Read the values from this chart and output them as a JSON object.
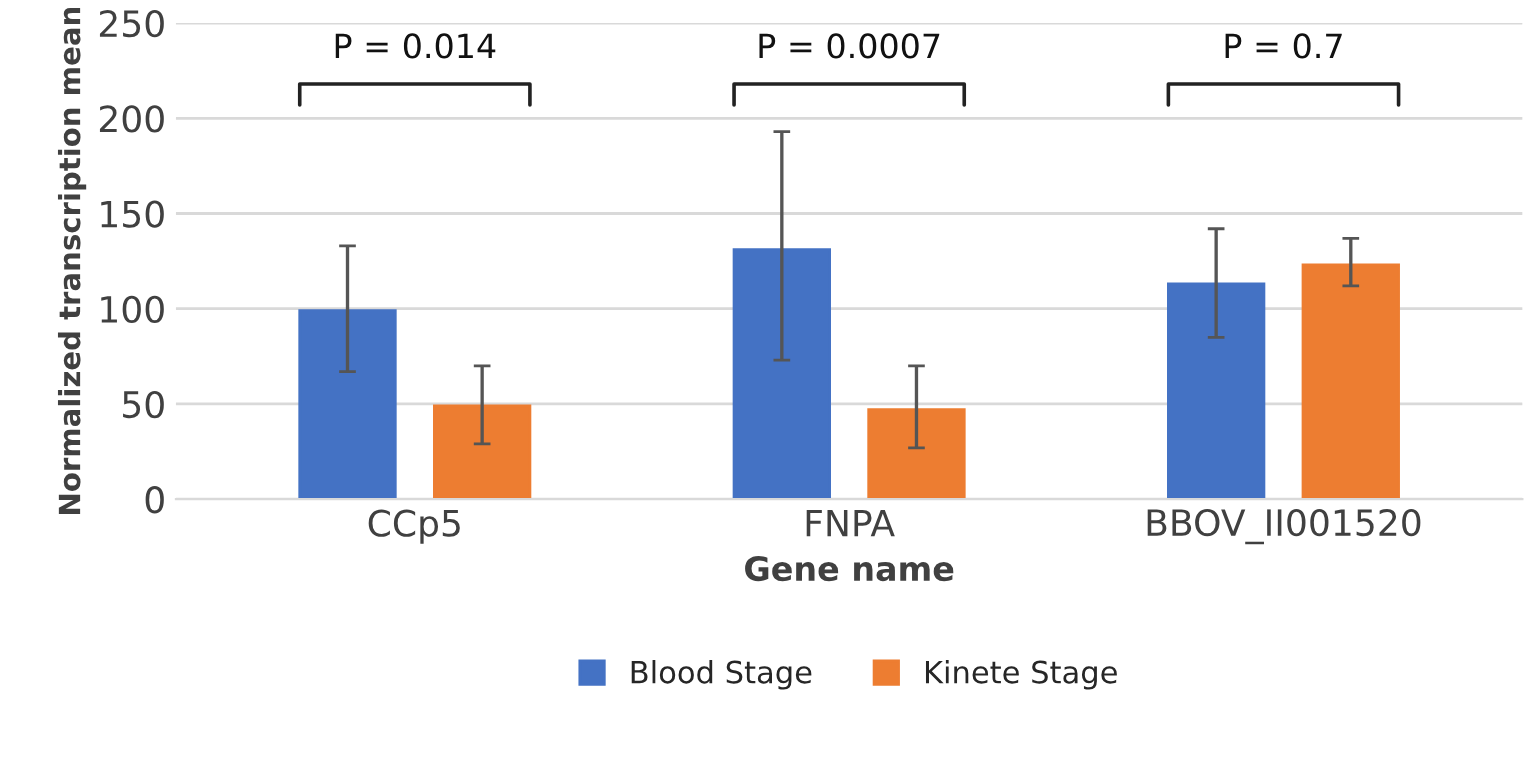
{
  "chart_data": {
    "type": "bar",
    "xlabel": "Gene name",
    "ylabel": "Normalized transcription mean",
    "categories": [
      "CCp5",
      "FNPA",
      "BBOV_II001520"
    ],
    "series": [
      {
        "name": "Blood Stage",
        "color": "#4472c4",
        "values": [
          99,
          131,
          113
        ],
        "errors": [
          [
            67,
            133
          ],
          [
            73,
            193
          ],
          [
            85,
            142
          ]
        ]
      },
      {
        "name": "Kinete Stage",
        "color": "#ed7d31",
        "values": [
          49,
          47,
          123
        ],
        "errors": [
          [
            29,
            70
          ],
          [
            27,
            70
          ],
          [
            112,
            137
          ]
        ]
      }
    ],
    "ylim": [
      0,
      250
    ],
    "yticks": [
      0,
      50,
      100,
      150,
      200,
      250
    ],
    "grid": "y",
    "legend": "bottom",
    "annotations": [
      "P = 0.014",
      "P = 0.0007",
      "P = 0.7"
    ]
  }
}
